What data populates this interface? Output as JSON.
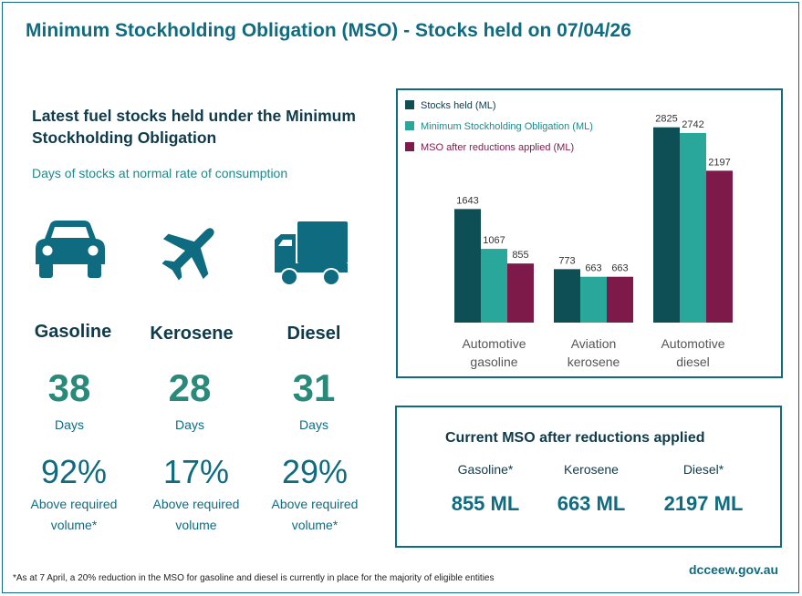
{
  "header": {
    "title": "Minimum Stockholding Obligation (MSO) - Stocks held on 07/04/26"
  },
  "summary": {
    "heading": "Latest fuel stocks held under the Minimum Stockholding Obligation",
    "subheading": "Days of stocks at normal rate of consumption",
    "fuels": [
      {
        "name": "Gasoline",
        "icon": "car-icon",
        "days": "38",
        "days_label": "Days",
        "pct": "92%",
        "pct_label_1": "Above required",
        "pct_label_2": "volume*"
      },
      {
        "name": "Kerosene",
        "icon": "airplane-icon",
        "days": "28",
        "days_label": "Days",
        "pct": "17%",
        "pct_label_1": "Above required",
        "pct_label_2": "volume"
      },
      {
        "name": "Diesel",
        "icon": "truck-icon",
        "days": "31",
        "days_label": "Days",
        "pct": "29%",
        "pct_label_1": "Above required",
        "pct_label_2": "volume*"
      }
    ]
  },
  "chart_data": {
    "type": "bar",
    "title": "",
    "categories": [
      [
        "Automotive",
        "gasoline"
      ],
      [
        "Aviation",
        "kerosene"
      ],
      [
        "Automotive",
        "diesel"
      ]
    ],
    "series": [
      {
        "name": "Stocks held (ML)",
        "values": [
          1643,
          773,
          2825
        ],
        "color": "#0d4f55"
      },
      {
        "name": "Minimum Stockholding Obligation (ML)",
        "values": [
          1067,
          663,
          2742
        ],
        "color": "#2aa79b"
      },
      {
        "name": "MSO after reductions applied (ML)",
        "values": [
          855,
          663,
          2197
        ],
        "color": "#7d1a4a"
      }
    ],
    "ylim": [
      0,
      2900
    ],
    "legend": "top-left",
    "grid": false,
    "xlabel": "",
    "ylabel": ""
  },
  "mso": {
    "title": "Current MSO after reductions applied",
    "items": [
      {
        "name": "Gasoline*",
        "value": "855 ML"
      },
      {
        "name": "Kerosene",
        "value": "663 ML"
      },
      {
        "name": "Diesel*",
        "value": "2197 ML"
      }
    ]
  },
  "footer": {
    "link": "dcceew.gov.au",
    "note": "*As at 7 April, a 20% reduction in the MSO for gasoline and diesel is currently in place for the majority of eligible entities"
  },
  "colors": {
    "brand": "#0f6c80",
    "dark": "#0f3b4a",
    "teal_text": "#2a8a7a"
  }
}
